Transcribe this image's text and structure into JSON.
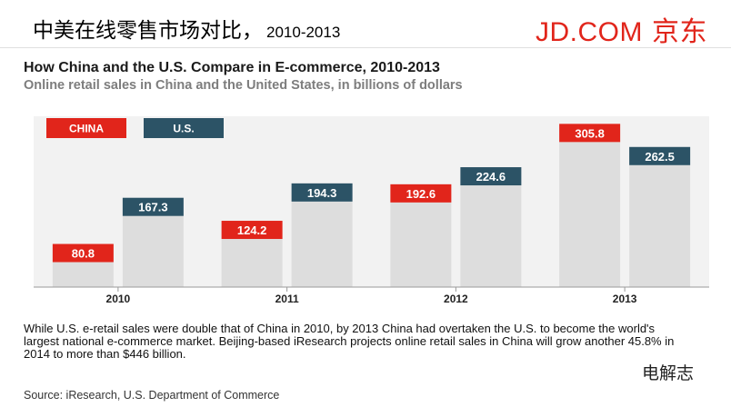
{
  "slide": {
    "title": "中美在线零售市场对比，",
    "title_years": "2010-2013",
    "logo_text": "JD.COM",
    "logo_cn": "京东",
    "watermark": "电解志"
  },
  "colors": {
    "china": "#e1251b",
    "us": "#2c5366",
    "bar_body": "#dddddd",
    "plot_bg": "#f2f2f2",
    "logo": "#e1251b"
  },
  "chart_data": {
    "type": "bar",
    "title": "How China and the U.S. Compare in E-commerce, 2010-2013",
    "subtitle": "Online retail sales in China and the United States, in billions of dollars",
    "categories": [
      "2010",
      "2011",
      "2012",
      "2013"
    ],
    "series": [
      {
        "name": "CHINA",
        "values": [
          80.8,
          124.2,
          192.6,
          305.8
        ]
      },
      {
        "name": "U.S.",
        "values": [
          167.3,
          194.3,
          224.6,
          262.5
        ]
      }
    ],
    "value_labels": {
      "CHINA": [
        "80.8",
        "124.2",
        "192.6",
        "305.8"
      ],
      "U.S.": [
        "167.3",
        "194.3",
        "224.6",
        "262.5"
      ]
    },
    "ylim": [
      0,
      320
    ],
    "legend": "top-left",
    "grid": false
  },
  "note": "While U.S. e-retail sales were double that of China in 2010, by 2013 China had overtaken the U.S. to become the world's largest national e-commerce market. Beijing-based iResearch projects online retail sales in China will grow another 45.8% in 2014 to more than $446 billion.",
  "source": "Source: iResearch, U.S. Department of Commerce"
}
